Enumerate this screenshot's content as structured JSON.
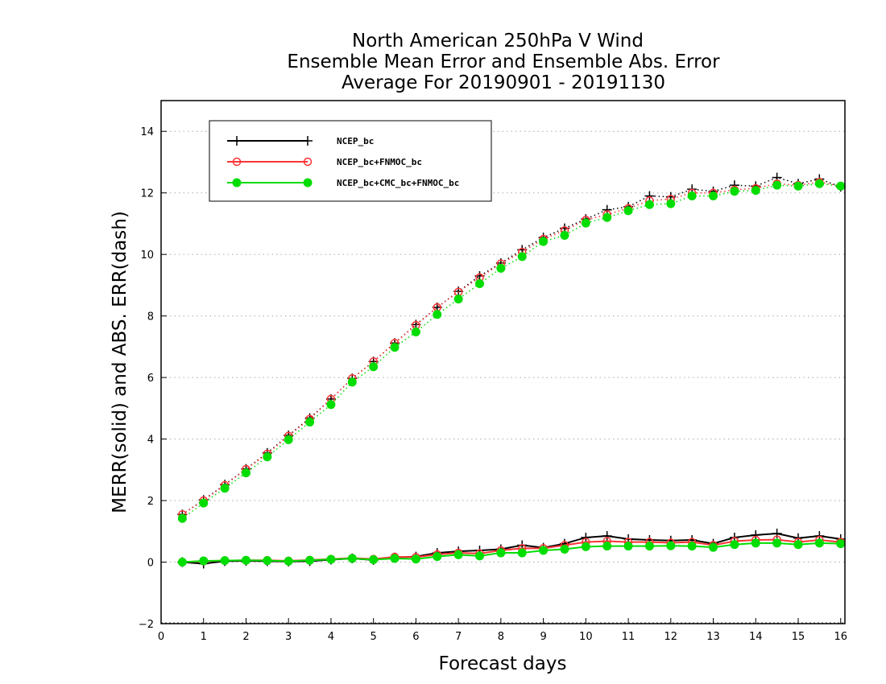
{
  "chart_data": {
    "type": "line",
    "title": [
      "North American 250hPa V Wind",
      "Ensemble Mean Error and Ensemble Abs. Error",
      "Average For 20190901 - 20191130"
    ],
    "xlabel": "Forecast days",
    "ylabel": "MERR(solid) and ABS. ERR(dash)",
    "xlim": [
      0,
      16.1
    ],
    "ylim": [
      -2,
      15
    ],
    "xticks": [
      0,
      1,
      2,
      3,
      4,
      5,
      6,
      7,
      8,
      9,
      10,
      11,
      12,
      13,
      14,
      15,
      16
    ],
    "yticks": [
      -2,
      0,
      2,
      4,
      6,
      8,
      10,
      12,
      14
    ],
    "grid": "horizontal dotted",
    "legend_position": "top-left",
    "x": [
      0.5,
      1,
      1.5,
      2,
      2.5,
      3,
      3.5,
      4,
      4.5,
      5,
      5.5,
      6,
      6.5,
      7,
      7.5,
      8,
      8.5,
      9,
      9.5,
      10,
      10.5,
      11,
      11.5,
      12,
      12.5,
      13,
      13.5,
      14,
      14.5,
      15,
      15.5,
      16
    ],
    "series": [
      {
        "name": "NCEP_bc",
        "color": "#000000",
        "marker": "plus",
        "merr": [
          0.0,
          -0.05,
          0.03,
          0.04,
          0.03,
          0.02,
          0.03,
          0.08,
          0.12,
          0.07,
          0.15,
          0.18,
          0.3,
          0.35,
          0.38,
          0.42,
          0.55,
          0.47,
          0.6,
          0.8,
          0.85,
          0.75,
          0.72,
          0.7,
          0.72,
          0.6,
          0.8,
          0.88,
          0.93,
          0.78,
          0.85,
          0.75
        ],
        "abs_err": [
          1.55,
          2.02,
          2.52,
          3.03,
          3.55,
          4.12,
          4.68,
          5.3,
          5.97,
          6.52,
          7.12,
          7.72,
          8.28,
          8.8,
          9.3,
          9.72,
          10.15,
          10.55,
          10.85,
          11.15,
          11.45,
          11.55,
          11.9,
          11.87,
          12.12,
          12.05,
          12.25,
          12.22,
          12.5,
          12.3,
          12.45,
          12.2
        ]
      },
      {
        "name": "NCEP_bc+FNMOC_bc",
        "color": "#ff3333",
        "marker": "open-circle",
        "merr": [
          0.0,
          0.03,
          0.05,
          0.06,
          0.06,
          0.04,
          0.07,
          0.1,
          0.13,
          0.1,
          0.17,
          0.16,
          0.25,
          0.3,
          0.28,
          0.38,
          0.45,
          0.45,
          0.55,
          0.65,
          0.68,
          0.65,
          0.65,
          0.63,
          0.65,
          0.55,
          0.68,
          0.72,
          0.73,
          0.65,
          0.72,
          0.65
        ],
        "abs_err": [
          1.55,
          2.0,
          2.5,
          3.02,
          3.52,
          4.1,
          4.65,
          5.3,
          5.97,
          6.52,
          7.12,
          7.7,
          8.28,
          8.78,
          9.25,
          9.7,
          10.08,
          10.5,
          10.78,
          11.12,
          11.3,
          11.5,
          11.75,
          11.8,
          12.0,
          12.0,
          12.1,
          12.15,
          12.3,
          12.25,
          12.35,
          12.22
        ]
      },
      {
        "name": "NCEP_bc+CMC_bc+FNMOC_bc",
        "color": "#00dd00",
        "marker": "filled-circle",
        "merr": [
          0.0,
          0.04,
          0.05,
          0.06,
          0.05,
          0.03,
          0.06,
          0.09,
          0.12,
          0.08,
          0.12,
          0.1,
          0.18,
          0.24,
          0.2,
          0.3,
          0.3,
          0.38,
          0.42,
          0.5,
          0.52,
          0.52,
          0.52,
          0.53,
          0.52,
          0.48,
          0.57,
          0.62,
          0.62,
          0.57,
          0.62,
          0.6
        ],
        "abs_err": [
          1.42,
          1.92,
          2.4,
          2.9,
          3.42,
          3.98,
          4.55,
          5.12,
          5.85,
          6.35,
          6.98,
          7.48,
          8.05,
          8.55,
          9.05,
          9.55,
          9.93,
          10.42,
          10.62,
          11.02,
          11.2,
          11.42,
          11.62,
          11.65,
          11.9,
          11.9,
          12.05,
          12.08,
          12.25,
          12.22,
          12.3,
          12.22
        ]
      }
    ]
  }
}
